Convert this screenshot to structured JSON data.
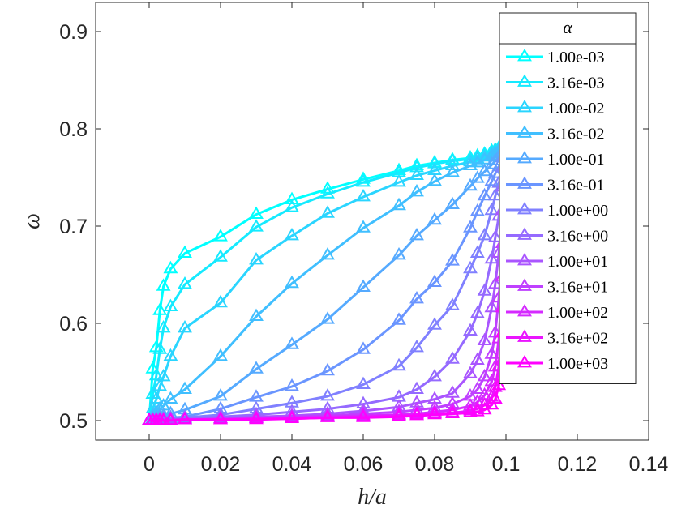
{
  "chart_data": {
    "type": "line",
    "xlabel": "h/a",
    "ylabel": "ω",
    "xlim": [
      -0.015,
      0.14
    ],
    "ylim": [
      0.48,
      0.93
    ],
    "x_ticks": [
      "0",
      "0.02",
      "0.04",
      "0.06",
      "0.08",
      "0.1",
      "0.12",
      "0.14"
    ],
    "y_ticks": [
      "0.5",
      "0.6",
      "0.7",
      "0.8",
      "0.9"
    ],
    "grid": false,
    "legend": {
      "title": "α",
      "placement": "top-right"
    },
    "marker": "triangle",
    "x": [
      0,
      0.001,
      0.002,
      0.003,
      0.004,
      0.006,
      0.01,
      0.02,
      0.03,
      0.04,
      0.05,
      0.06,
      0.07,
      0.075,
      0.08,
      0.085,
      0.09,
      0.092,
      0.094,
      0.096,
      0.097,
      0.098,
      0.099,
      0.1
    ],
    "series": [
      {
        "name": "1.00e-03",
        "color": "#00FFFF",
        "values": [
          0.5,
          0.553,
          0.575,
          0.613,
          0.638,
          0.656,
          0.672,
          0.689,
          0.712,
          0.727,
          0.738,
          0.748,
          0.757,
          0.762,
          0.765,
          0.768,
          0.77,
          0.772,
          0.774,
          0.777,
          0.778,
          0.78,
          0.782,
          0.785
        ]
      },
      {
        "name": "3.16e-03",
        "color": "#15EAFF",
        "values": [
          0.5,
          0.527,
          0.546,
          0.573,
          0.595,
          0.617,
          0.64,
          0.668,
          0.699,
          0.719,
          0.733,
          0.745,
          0.755,
          0.76,
          0.764,
          0.767,
          0.769,
          0.771,
          0.773,
          0.776,
          0.778,
          0.78,
          0.782,
          0.785
        ]
      },
      {
        "name": "1.00e-02",
        "color": "#2AD5FF",
        "values": [
          0.5,
          0.512,
          0.522,
          0.535,
          0.545,
          0.566,
          0.595,
          0.621,
          0.665,
          0.69,
          0.713,
          0.73,
          0.745,
          0.752,
          0.757,
          0.762,
          0.766,
          0.769,
          0.771,
          0.774,
          0.776,
          0.778,
          0.781,
          0.785
        ]
      },
      {
        "name": "3.16e-02",
        "color": "#40BFFF",
        "values": [
          0.5,
          0.505,
          0.508,
          0.512,
          0.515,
          0.522,
          0.532,
          0.566,
          0.607,
          0.641,
          0.67,
          0.698,
          0.721,
          0.735,
          0.746,
          0.755,
          0.762,
          0.765,
          0.768,
          0.772,
          0.774,
          0.777,
          0.78,
          0.785
        ]
      },
      {
        "name": "1.00e-01",
        "color": "#55AAFF",
        "values": [
          0.5,
          0.502,
          0.503,
          0.504,
          0.505,
          0.507,
          0.511,
          0.525,
          0.553,
          0.578,
          0.604,
          0.637,
          0.67,
          0.69,
          0.706,
          0.722,
          0.741,
          0.749,
          0.756,
          0.763,
          0.767,
          0.771,
          0.776,
          0.785
        ]
      },
      {
        "name": "3.16e-01",
        "color": "#6A95FF",
        "values": [
          0.5,
          0.501,
          0.501,
          0.502,
          0.502,
          0.503,
          0.504,
          0.512,
          0.524,
          0.535,
          0.551,
          0.573,
          0.603,
          0.625,
          0.642,
          0.664,
          0.698,
          0.715,
          0.731,
          0.746,
          0.754,
          0.761,
          0.77,
          0.785
        ]
      },
      {
        "name": "1.00e+00",
        "color": "#8080FF",
        "values": [
          0.5,
          0.5,
          0.501,
          0.501,
          0.501,
          0.502,
          0.503,
          0.506,
          0.512,
          0.518,
          0.525,
          0.537,
          0.556,
          0.575,
          0.598,
          0.618,
          0.656,
          0.672,
          0.69,
          0.716,
          0.731,
          0.744,
          0.76,
          0.785
        ]
      },
      {
        "name": "3.16e+00",
        "color": "#956AFF",
        "values": [
          0.5,
          0.5,
          0.5,
          0.501,
          0.501,
          0.501,
          0.502,
          0.504,
          0.506,
          0.509,
          0.512,
          0.517,
          0.524,
          0.532,
          0.545,
          0.563,
          0.592,
          0.61,
          0.633,
          0.666,
          0.688,
          0.71,
          0.74,
          0.785
        ]
      },
      {
        "name": "1.00e+01",
        "color": "#AA55FF",
        "values": [
          0.5,
          0.5,
          0.5,
          0.5,
          0.501,
          0.501,
          0.501,
          0.502,
          0.504,
          0.505,
          0.507,
          0.51,
          0.514,
          0.518,
          0.522,
          0.528,
          0.548,
          0.562,
          0.582,
          0.616,
          0.64,
          0.672,
          0.716,
          0.785
        ]
      },
      {
        "name": "3.16e+01",
        "color": "#BF40FF",
        "values": [
          0.5,
          0.5,
          0.5,
          0.5,
          0.5,
          0.501,
          0.501,
          0.502,
          0.503,
          0.504,
          0.505,
          0.507,
          0.509,
          0.511,
          0.513,
          0.517,
          0.525,
          0.532,
          0.545,
          0.568,
          0.59,
          0.626,
          0.682,
          0.785
        ]
      },
      {
        "name": "1.00e+02",
        "color": "#D52AFF",
        "values": [
          0.5,
          0.5,
          0.5,
          0.5,
          0.5,
          0.5,
          0.501,
          0.501,
          0.502,
          0.503,
          0.504,
          0.505,
          0.506,
          0.507,
          0.509,
          0.511,
          0.515,
          0.519,
          0.526,
          0.54,
          0.555,
          0.584,
          0.648,
          0.785
        ]
      },
      {
        "name": "3.16e+02",
        "color": "#EA15FF",
        "values": [
          0.5,
          0.5,
          0.5,
          0.5,
          0.5,
          0.5,
          0.501,
          0.501,
          0.502,
          0.502,
          0.503,
          0.504,
          0.505,
          0.506,
          0.507,
          0.508,
          0.51,
          0.512,
          0.516,
          0.524,
          0.534,
          0.556,
          0.616,
          0.785
        ]
      },
      {
        "name": "1.00e+03",
        "color": "#FF00FF",
        "values": [
          0.5,
          0.5,
          0.5,
          0.5,
          0.5,
          0.5,
          0.501,
          0.501,
          0.501,
          0.502,
          0.503,
          0.503,
          0.504,
          0.505,
          0.506,
          0.507,
          0.508,
          0.509,
          0.511,
          0.516,
          0.522,
          0.536,
          0.59,
          0.785
        ]
      }
    ]
  }
}
